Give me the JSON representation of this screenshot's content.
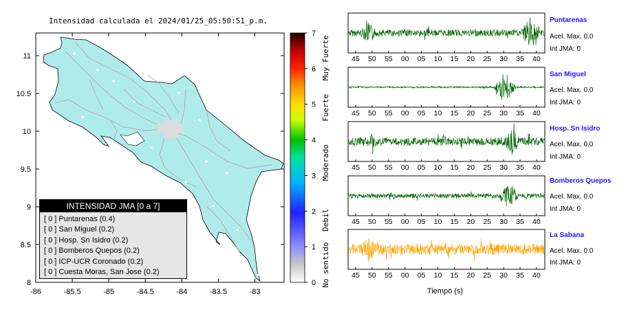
{
  "map": {
    "title": "Intensidad calculada el 2024/01/25_05:50:51_p.m.",
    "lat_ticks": [
      "11",
      "10.5",
      "10",
      "9.5",
      "9",
      "8.5",
      "8"
    ],
    "lon_ticks": [
      "-86",
      "-85.5",
      "-85",
      "-84.5",
      "-84",
      "-83.5",
      "-83"
    ],
    "land_color": "#b0ebec",
    "road_color": "#a9a9a9"
  },
  "colorbar": {
    "ticks": [
      "7",
      "6",
      "5",
      "4",
      "3",
      "2",
      "1",
      "0"
    ],
    "labels": [
      "Muy Fuerte",
      "Fuerte",
      "Moderado",
      "Debil",
      "No sentido"
    ]
  },
  "legend": {
    "title": "INTENSIDAD JMA [0 a 7]",
    "items": [
      {
        "level": "[ 0 ]",
        "name": "Puntarenas (0.4)"
      },
      {
        "level": "[ 0 ]",
        "name": "San Miguel (0.2)"
      },
      {
        "level": "[ 0 ]",
        "name": "Hosp. Sn Isidro (0.2)"
      },
      {
        "level": "[ 0 ]",
        "name": "Bomberos Quepos (0.2)"
      },
      {
        "level": "[ 0 ]",
        "name": "ICP-UCR Coronado (0.2)"
      },
      {
        "level": "[ 0 ]",
        "name": "Cuesta Moras, San Jose (0.2)"
      }
    ]
  },
  "seismograms": {
    "x_ticks": [
      "45",
      "50",
      "55",
      "00",
      "05",
      "10",
      "15",
      "20",
      "25",
      "30",
      "35",
      "40"
    ],
    "xlabel": "Tiempo (s)",
    "stations": [
      {
        "name": "Puntarenas",
        "acel": "Acel. Max. 0.0",
        "jma": "Int JMA: 0",
        "color": "#006400"
      },
      {
        "name": "San Miguel",
        "acel": "Acel. Max. 0.0",
        "jma": "Int JMA: 0",
        "color": "#006400"
      },
      {
        "name": "Hosp. Sn Isidro",
        "acel": "Acel. Max. 0.0",
        "jma": "Int JMA: 0",
        "color": "#006400"
      },
      {
        "name": "Bomberos Quepos",
        "acel": "Acel. Max. 0.0",
        "jma": "Int JMA: 0",
        "color": "#006400"
      },
      {
        "name": "La Sabana",
        "acel": "Acel. Max. 0.0",
        "jma": "Int JMA: 0",
        "color": "#ffa500"
      }
    ]
  },
  "chart_data": [
    {
      "type": "heatmap",
      "title": "Intensidad calculada el 2024/01/25_05:50:51_p.m.",
      "xlabel": "",
      "ylabel": "",
      "xlim": [
        -86,
        -82.6
      ],
      "ylim": [
        8,
        11.3
      ],
      "colorbar": {
        "range": [
          0,
          7
        ],
        "labels": [
          "Muy Fuerte",
          "Fuerte",
          "Moderado",
          "Debil",
          "No sentido"
        ]
      },
      "stations": [
        {
          "name": "Puntarenas",
          "intensity": 0.4
        },
        {
          "name": "San Miguel",
          "intensity": 0.2
        },
        {
          "name": "Hosp. Sn Isidro",
          "intensity": 0.2
        },
        {
          "name": "Bomberos Quepos",
          "intensity": 0.2
        },
        {
          "name": "ICP-UCR Coronado",
          "intensity": 0.2
        },
        {
          "name": "Cuesta Moras, San Jose",
          "intensity": 0.2
        }
      ]
    },
    {
      "type": "line",
      "xlabel": "Tiempo (s)",
      "categories": [
        "45",
        "50",
        "55",
        "00",
        "05",
        "10",
        "15",
        "20",
        "25",
        "30",
        "35",
        "40"
      ],
      "series": [
        {
          "name": "Puntarenas",
          "acel_max": 0.0,
          "int_jma": 0
        },
        {
          "name": "San Miguel",
          "acel_max": 0.0,
          "int_jma": 0
        },
        {
          "name": "Hosp. Sn Isidro",
          "acel_max": 0.0,
          "int_jma": 0
        },
        {
          "name": "Bomberos Quepos",
          "acel_max": 0.0,
          "int_jma": 0
        },
        {
          "name": "La Sabana",
          "acel_max": 0.0,
          "int_jma": 0
        }
      ]
    }
  ]
}
